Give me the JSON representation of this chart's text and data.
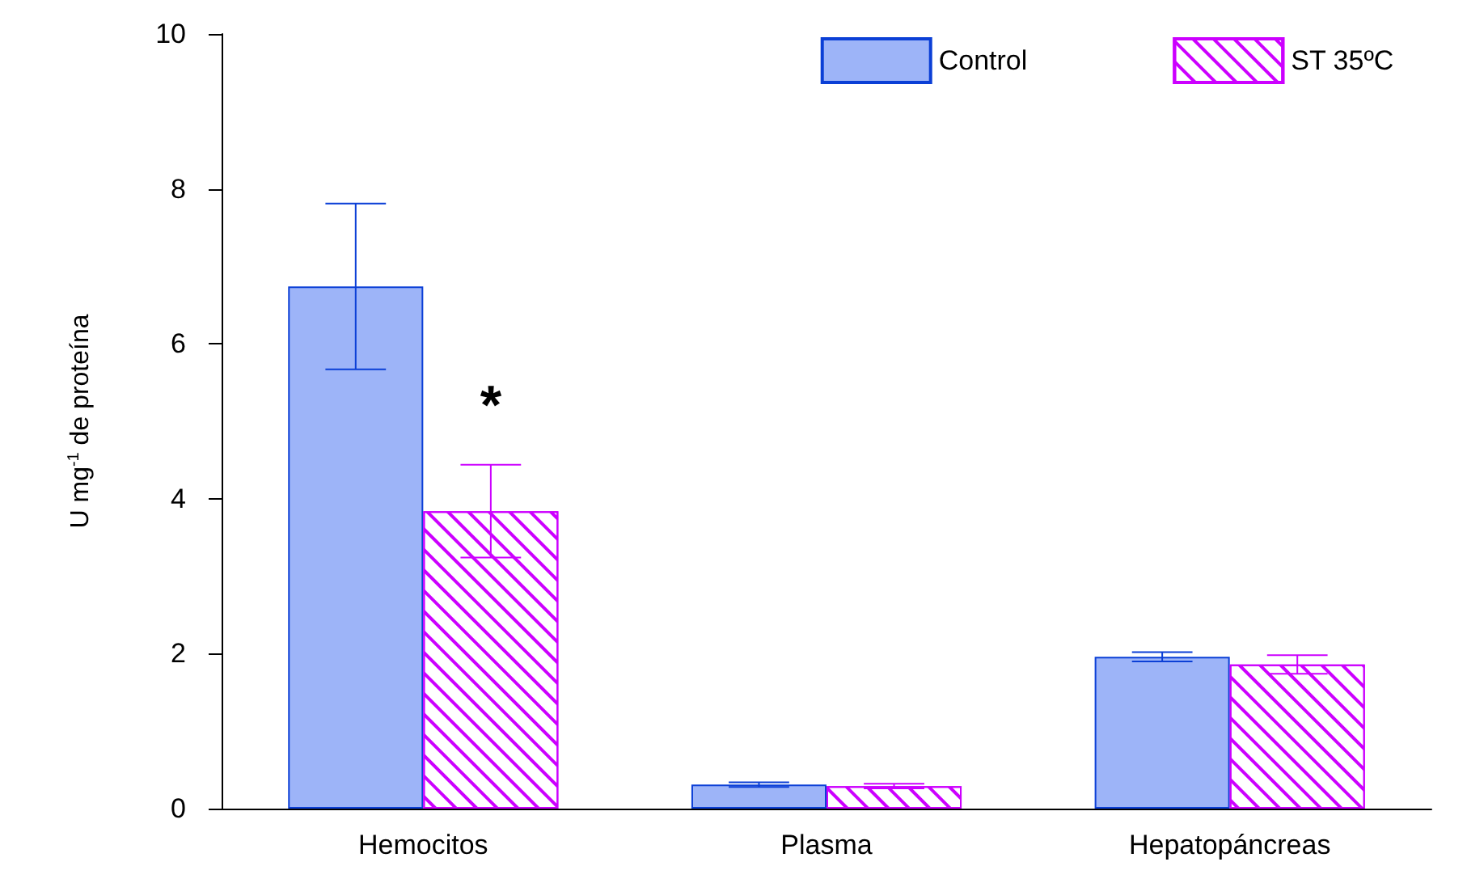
{
  "chart_data": {
    "type": "bar",
    "ylabel": "U mg$^{-1}$ de proteína",
    "categories": [
      "Hemocitos",
      "Plasma",
      "Hepatopáncreas"
    ],
    "series": [
      {
        "name": "Control",
        "color": "#0b3fd6",
        "values": [
          6.74,
          0.31,
          1.96
        ],
        "errors": [
          1.07,
          0.03,
          0.06
        ]
      },
      {
        "name": "ST 35ºC",
        "color": "#cc00ff",
        "values": [
          3.84,
          0.29,
          1.86
        ],
        "errors": [
          0.6,
          0.03,
          0.12
        ]
      }
    ],
    "ylim": [
      0,
      10
    ],
    "yticks": [
      0,
      2,
      4,
      6,
      8,
      10
    ],
    "grid": false,
    "legend": "top right",
    "annotations": [
      {
        "text": "*",
        "x": "Hemocitos",
        "y": 5.2
      }
    ]
  }
}
